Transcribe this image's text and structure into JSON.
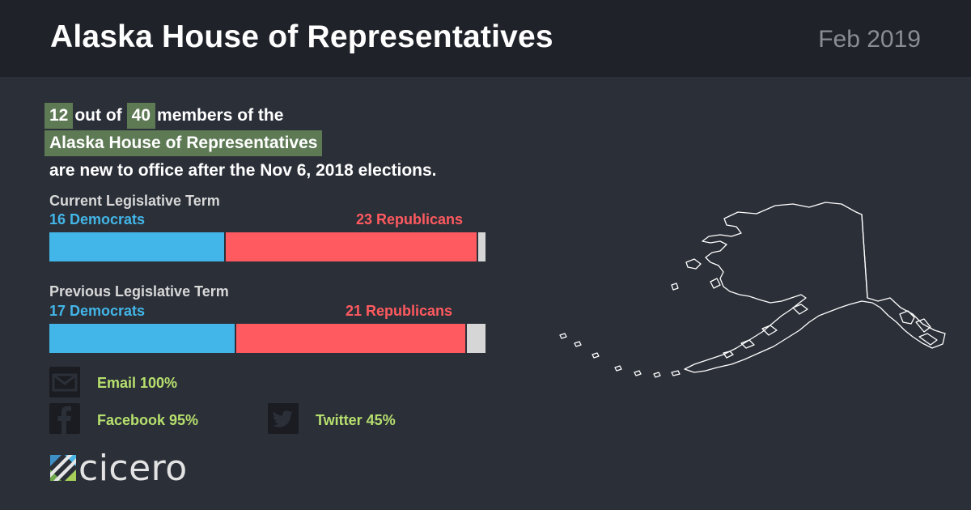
{
  "header": {
    "title": "Alaska House of Representatives",
    "date": "Feb 2019"
  },
  "headline": {
    "new_count": "12",
    "connector1": "out of",
    "total": "40",
    "connector2": "members of the",
    "body_name": "Alaska House of Representatives",
    "suffix": "are new to office after the Nov 6, 2018 elections."
  },
  "current_term": {
    "label": "Current Legislative Term",
    "democrats_label": "16 Democrats",
    "republicans_label": "23 Republicans",
    "democrats": 16,
    "republicans": 23,
    "other": 1
  },
  "previous_term": {
    "label": "Previous Legislative Term",
    "democrats_label": "17 Democrats",
    "republicans_label": "21 Republicans",
    "democrats": 17,
    "republicans": 21,
    "other": 2
  },
  "contact": {
    "email": "Email 100%",
    "facebook": "Facebook 95%",
    "twitter": "Twitter 45%"
  },
  "brand": {
    "name": "cicero"
  },
  "colors": {
    "democrat": "#42b6e8",
    "republican": "#ff5a5f",
    "other": "#d6d6d6",
    "highlight": "#5e7a55",
    "contact_text": "#b6e06e"
  },
  "icons": [
    "envelope-icon",
    "facebook-icon",
    "twitter-icon",
    "cicero-logo-icon",
    "alaska-map"
  ]
}
